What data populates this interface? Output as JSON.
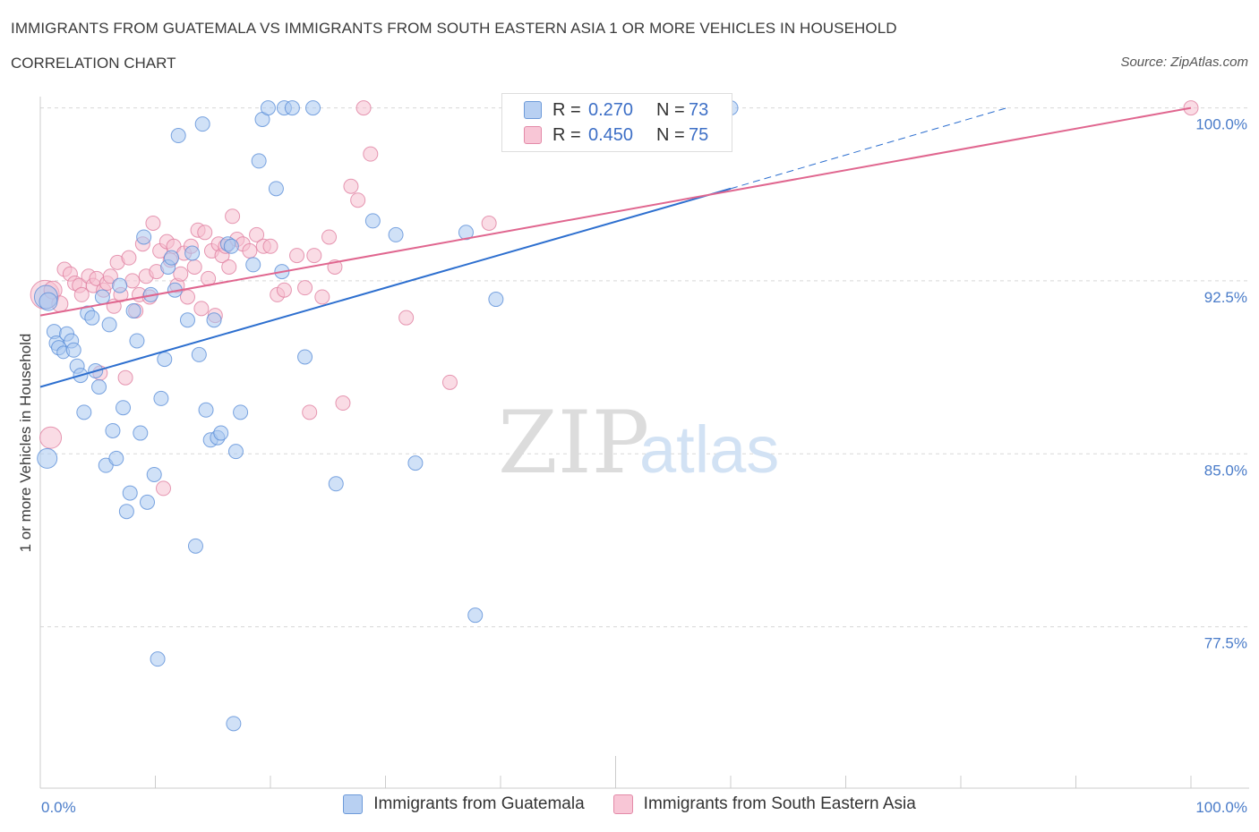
{
  "header": {
    "title": "IMMIGRANTS FROM GUATEMALA VS IMMIGRANTS FROM SOUTH EASTERN ASIA 1 OR MORE VEHICLES IN HOUSEHOLD",
    "subtitle": "CORRELATION CHART",
    "source": "Source: ZipAtlas.com"
  },
  "legend": {
    "series1": {
      "r_label": "R =",
      "r_value": "0.270",
      "n_label": "N =",
      "n_value": "73"
    },
    "series2": {
      "r_label": "R =",
      "r_value": "0.450",
      "n_label": "N =",
      "n_value": "75"
    }
  },
  "watermark": {
    "zip": "ZIP",
    "atlas": "atlas"
  },
  "colors": {
    "series1_fill": "#a9c8f0",
    "series1_stroke": "#5b8fd8",
    "series1_line": "#2d6fcf",
    "series2_fill": "#f6bfd0",
    "series2_stroke": "#e07fa0",
    "series2_line": "#e0668f",
    "tick_text": "#4a7cc9",
    "grid": "#d8d8d8"
  },
  "chart_data": {
    "type": "scatter",
    "title": "IMMIGRANTS FROM GUATEMALA VS IMMIGRANTS FROM SOUTH EASTERN ASIA 1 OR MORE VEHICLES IN HOUSEHOLD",
    "subtitle": "CORRELATION CHART",
    "xlabel": "",
    "ylabel": "1 or more Vehicles in Household",
    "xlim": [
      0,
      100
    ],
    "ylim": [
      70.5,
      100.8
    ],
    "x_tick_labels": [
      "0.0%",
      "100.0%"
    ],
    "y_ticks": [
      77.5,
      85.0,
      92.5,
      100.0
    ],
    "y_tick_labels": [
      "77.5%",
      "85.0%",
      "92.5%",
      "100.0%"
    ],
    "grid": true,
    "legend_position": "bottom-center",
    "series": [
      {
        "name": "Immigrants from Guatemala",
        "r": 0.27,
        "n": 73,
        "trend": {
          "x0": 0,
          "y0": 87.9,
          "x1": 60,
          "y1": 96.5,
          "dashed_to_x": 84,
          "dashed_to_y": 100.0
        },
        "points": [
          [
            0.5,
            91.8,
            13
          ],
          [
            0.6,
            84.8,
            11
          ],
          [
            0.7,
            91.6,
            10
          ],
          [
            1.2,
            90.3,
            8
          ],
          [
            1.4,
            89.8,
            8
          ],
          [
            1.6,
            89.6,
            8
          ],
          [
            2.0,
            89.4,
            7
          ],
          [
            2.3,
            90.2,
            8
          ],
          [
            2.7,
            89.9,
            8
          ],
          [
            2.9,
            89.5,
            8
          ],
          [
            3.2,
            88.8,
            8
          ],
          [
            3.5,
            88.4,
            8
          ],
          [
            3.8,
            86.8,
            8
          ],
          [
            4.1,
            91.1,
            8
          ],
          [
            4.5,
            90.9,
            8
          ],
          [
            4.8,
            88.6,
            8
          ],
          [
            5.1,
            87.9,
            8
          ],
          [
            5.4,
            91.8,
            8
          ],
          [
            5.7,
            84.5,
            8
          ],
          [
            6.0,
            90.6,
            8
          ],
          [
            6.3,
            86.0,
            8
          ],
          [
            6.6,
            84.8,
            8
          ],
          [
            6.9,
            92.3,
            8
          ],
          [
            7.2,
            87.0,
            8
          ],
          [
            7.5,
            82.5,
            8
          ],
          [
            7.8,
            83.3,
            8
          ],
          [
            8.1,
            91.2,
            8
          ],
          [
            8.4,
            89.9,
            8
          ],
          [
            8.7,
            85.9,
            8
          ],
          [
            9.0,
            94.4,
            8
          ],
          [
            9.3,
            82.9,
            8
          ],
          [
            9.6,
            91.9,
            8
          ],
          [
            9.9,
            84.1,
            8
          ],
          [
            10.2,
            76.1,
            8
          ],
          [
            10.5,
            87.4,
            8
          ],
          [
            10.8,
            89.1,
            8
          ],
          [
            11.1,
            93.1,
            8
          ],
          [
            11.4,
            93.5,
            8
          ],
          [
            11.7,
            92.1,
            8
          ],
          [
            12.0,
            98.8,
            8
          ],
          [
            12.8,
            90.8,
            8
          ],
          [
            13.2,
            93.7,
            8
          ],
          [
            13.5,
            81.0,
            8
          ],
          [
            13.8,
            89.3,
            8
          ],
          [
            14.1,
            99.3,
            8
          ],
          [
            14.4,
            86.9,
            8
          ],
          [
            14.8,
            85.6,
            8
          ],
          [
            15.1,
            90.8,
            8
          ],
          [
            15.4,
            85.7,
            8
          ],
          [
            15.7,
            85.9,
            8
          ],
          [
            16.3,
            94.1,
            8
          ],
          [
            16.6,
            94.0,
            8
          ],
          [
            16.8,
            73.3,
            8
          ],
          [
            17.0,
            85.1,
            8
          ],
          [
            17.4,
            86.8,
            8
          ],
          [
            18.5,
            93.2,
            8
          ],
          [
            19.0,
            97.7,
            8
          ],
          [
            19.3,
            99.5,
            8
          ],
          [
            19.8,
            100.0,
            8
          ],
          [
            20.5,
            96.5,
            8
          ],
          [
            21.0,
            92.9,
            8
          ],
          [
            21.2,
            100.0,
            8
          ],
          [
            21.9,
            100.0,
            8
          ],
          [
            23.0,
            89.2,
            8
          ],
          [
            23.7,
            100.0,
            8
          ],
          [
            25.7,
            83.7,
            8
          ],
          [
            28.9,
            95.1,
            8
          ],
          [
            30.9,
            94.5,
            8
          ],
          [
            32.6,
            84.6,
            8
          ],
          [
            37.0,
            94.6,
            8
          ],
          [
            37.8,
            78.0,
            8
          ],
          [
            39.6,
            91.7,
            8
          ],
          [
            60.0,
            100.0,
            8
          ]
        ]
      },
      {
        "name": "Immigrants from South Eastern Asia",
        "r": 0.45,
        "n": 75,
        "trend": {
          "x0": 0,
          "y0": 91.0,
          "x1": 100,
          "y1": 100.0
        },
        "points": [
          [
            0.4,
            91.9,
            16
          ],
          [
            0.9,
            85.7,
            12
          ],
          [
            1.1,
            92.1,
            10
          ],
          [
            1.7,
            91.5,
            9
          ],
          [
            2.1,
            93.0,
            8
          ],
          [
            2.6,
            92.8,
            8
          ],
          [
            3.0,
            92.4,
            8
          ],
          [
            3.4,
            92.3,
            8
          ],
          [
            3.6,
            91.9,
            8
          ],
          [
            4.2,
            92.7,
            8
          ],
          [
            4.6,
            92.3,
            8
          ],
          [
            4.9,
            92.6,
            8
          ],
          [
            5.2,
            88.5,
            8
          ],
          [
            5.5,
            92.1,
            8
          ],
          [
            5.8,
            92.4,
            8
          ],
          [
            6.1,
            92.7,
            8
          ],
          [
            6.4,
            91.4,
            8
          ],
          [
            6.7,
            93.3,
            8
          ],
          [
            7.0,
            91.9,
            8
          ],
          [
            7.4,
            88.3,
            8
          ],
          [
            7.7,
            93.5,
            8
          ],
          [
            8.0,
            92.5,
            8
          ],
          [
            8.3,
            91.2,
            8
          ],
          [
            8.6,
            91.9,
            8
          ],
          [
            8.9,
            94.1,
            8
          ],
          [
            9.2,
            92.7,
            8
          ],
          [
            9.5,
            91.8,
            8
          ],
          [
            9.8,
            95.0,
            8
          ],
          [
            10.1,
            92.9,
            8
          ],
          [
            10.4,
            93.8,
            8
          ],
          [
            10.7,
            83.5,
            8
          ],
          [
            11.0,
            94.2,
            8
          ],
          [
            11.3,
            93.4,
            8
          ],
          [
            11.6,
            94.0,
            8
          ],
          [
            11.9,
            92.3,
            8
          ],
          [
            12.2,
            92.8,
            8
          ],
          [
            12.5,
            93.7,
            8
          ],
          [
            12.8,
            91.8,
            8
          ],
          [
            13.1,
            94.0,
            8
          ],
          [
            13.4,
            93.1,
            8
          ],
          [
            13.7,
            94.7,
            8
          ],
          [
            14.0,
            91.3,
            8
          ],
          [
            14.3,
            94.6,
            8
          ],
          [
            14.6,
            92.6,
            8
          ],
          [
            14.9,
            93.8,
            8
          ],
          [
            15.2,
            91.0,
            8
          ],
          [
            15.5,
            94.1,
            8
          ],
          [
            15.8,
            93.6,
            8
          ],
          [
            16.1,
            94.0,
            8
          ],
          [
            16.4,
            93.1,
            8
          ],
          [
            16.7,
            95.3,
            8
          ],
          [
            17.1,
            94.3,
            8
          ],
          [
            17.6,
            94.1,
            8
          ],
          [
            18.2,
            93.8,
            8
          ],
          [
            18.8,
            94.5,
            8
          ],
          [
            19.4,
            94.0,
            8
          ],
          [
            20.0,
            94.0,
            8
          ],
          [
            20.6,
            91.9,
            8
          ],
          [
            21.2,
            92.1,
            8
          ],
          [
            22.3,
            93.6,
            8
          ],
          [
            23.0,
            92.2,
            8
          ],
          [
            23.4,
            86.8,
            8
          ],
          [
            23.8,
            93.6,
            8
          ],
          [
            24.5,
            91.8,
            8
          ],
          [
            25.1,
            94.4,
            8
          ],
          [
            25.6,
            93.1,
            8
          ],
          [
            26.3,
            87.2,
            8
          ],
          [
            27.0,
            96.6,
            8
          ],
          [
            27.6,
            96.0,
            8
          ],
          [
            28.1,
            100.0,
            8
          ],
          [
            28.7,
            98.0,
            8
          ],
          [
            31.8,
            90.9,
            8
          ],
          [
            35.6,
            88.1,
            8
          ],
          [
            39.0,
            95.0,
            8
          ],
          [
            100.0,
            100.0,
            8
          ]
        ]
      }
    ]
  }
}
